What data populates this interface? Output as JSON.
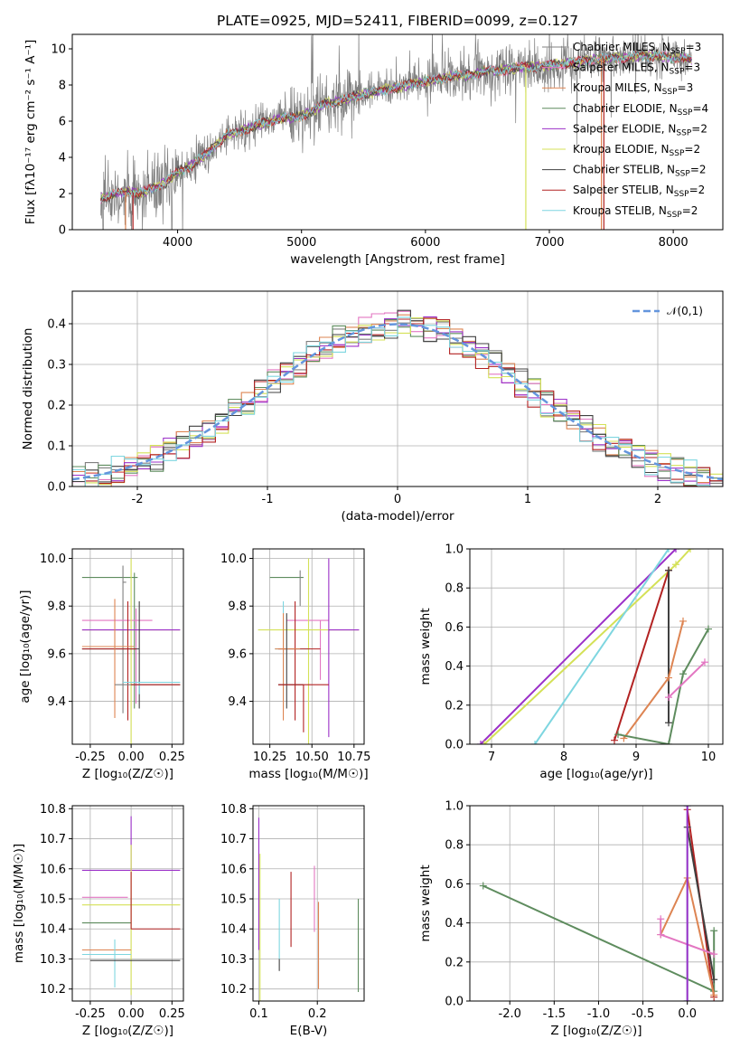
{
  "figure_title": "PLATE=0925, MJD=52411, FIBERID=0099, z=0.127",
  "models": [
    {
      "name": "Chabrier MILES",
      "nssp": "3",
      "color": "#808080"
    },
    {
      "name": "Salpeter MILES",
      "nssp": "3",
      "color": "#e377c2"
    },
    {
      "name": "Kroupa MILES",
      "nssp": "3",
      "color": "#dd8452"
    },
    {
      "name": "Chabrier ELODIE",
      "nssp": "4",
      "color": "#5e8c5e"
    },
    {
      "name": "Salpeter ELODIE",
      "nssp": "2",
      "color": "#9b30c8"
    },
    {
      "name": "Kroupa ELODIE",
      "nssp": "2",
      "color": "#d4e157"
    },
    {
      "name": "Chabrier STELIB",
      "nssp": "2",
      "color": "#404040"
    },
    {
      "name": "Salpeter STELIB",
      "nssp": "2",
      "color": "#b22222"
    },
    {
      "name": "Kroupa STELIB",
      "nssp": "2",
      "color": "#7ed6e0"
    }
  ],
  "chart_data": [
    {
      "id": "spectrum",
      "type": "line",
      "title": "PLATE=0925, MJD=52411, FIBERID=0099, z=0.127",
      "xlabel": "wavelength [Angstrom, rest frame]",
      "ylabel": "Flux [fλ10⁻¹⁷ erg cm⁻² s⁻¹ A⁻¹]",
      "xlim": [
        3150,
        8400
      ],
      "ylim": [
        0,
        10.8
      ],
      "xticks": [
        4000,
        5000,
        6000,
        7000,
        8000
      ],
      "yticks": [
        0,
        2,
        4,
        6,
        8,
        10
      ],
      "legend_position": "top-right",
      "continuum": {
        "x": [
          3380,
          3500,
          3600,
          3700,
          3800,
          3900,
          4000,
          4100,
          4200,
          4300,
          4400,
          4500,
          4600,
          4700,
          4800,
          4900,
          5000,
          5100,
          5200,
          5300,
          5400,
          5500,
          5600,
          5700,
          5800,
          5900,
          6000,
          6100,
          6200,
          6300,
          6400,
          6500,
          6600,
          6700,
          6800,
          6900,
          7000,
          7100,
          7200,
          7300,
          7400,
          7500,
          7600,
          7700,
          7800,
          7900,
          8000,
          8100,
          8150
        ],
        "y": [
          1.7,
          2.0,
          2.1,
          2.0,
          2.3,
          2.6,
          3.2,
          3.5,
          4.0,
          4.6,
          5.3,
          5.4,
          5.7,
          5.9,
          6.1,
          6.2,
          6.3,
          6.6,
          7.0,
          7.1,
          7.3,
          7.5,
          7.6,
          7.8,
          7.9,
          8.1,
          8.2,
          8.3,
          8.5,
          8.5,
          8.6,
          8.8,
          8.8,
          8.9,
          9.0,
          9.0,
          9.1,
          9.2,
          9.2,
          9.4,
          9.4,
          9.5,
          9.5,
          9.6,
          9.6,
          9.6,
          9.5,
          9.5,
          9.4
        ]
      }
    },
    {
      "id": "residuals",
      "type": "histogram",
      "xlabel": "(data-model)/error",
      "ylabel": "Normed distribution",
      "xlim": [
        -2.5,
        2.5
      ],
      "ylim": [
        0,
        0.48
      ],
      "xticks": [
        -2,
        -1,
        0,
        1,
        2
      ],
      "yticks": [
        0.0,
        0.1,
        0.2,
        0.3,
        0.4
      ],
      "reference_curve": {
        "name": "𝒩(0,1)",
        "color": "#6495dd"
      },
      "bin_width": 0.1
    },
    {
      "id": "age-vs-Z",
      "type": "errorbar",
      "xlabel": "Z [log₁₀(Z/Z☉)]",
      "ylabel": "age  [log₁₀(age/yr)]",
      "xlim": [
        -0.36,
        0.32
      ],
      "ylim": [
        9.22,
        10.04
      ],
      "xticks": [
        -0.25,
        0.0,
        0.25
      ],
      "yticks": [
        9.4,
        9.6,
        9.8,
        10.0
      ],
      "points": [
        {
          "model": 3,
          "x": 0.02,
          "y": 9.92,
          "xerr": [
            0.32,
            0.02
          ],
          "yerr": [
            0.55,
            0.02
          ]
        },
        {
          "model": 0,
          "x": -0.05,
          "y": 9.9,
          "xerr": [
            0.0,
            0.02
          ],
          "yerr": [
            0.55,
            0.07
          ]
        },
        {
          "model": 1,
          "x": 0.03,
          "y": 9.74,
          "xerr": [
            0.33,
            0.1
          ],
          "yerr": [
            0.35,
            0.05
          ]
        },
        {
          "model": 5,
          "x": 0.0,
          "y": 9.7,
          "xerr": [
            0.3,
            0.3
          ],
          "yerr": [
            0.5,
            0.3
          ]
        },
        {
          "model": 4,
          "x": 0.0,
          "y": 9.7,
          "xerr": [
            0.3,
            0.3
          ],
          "yerr": [
            0.0,
            0.0
          ]
        },
        {
          "model": 6,
          "x": 0.05,
          "y": 9.62,
          "xerr": [
            0.35,
            0.0
          ],
          "yerr": [
            0.25,
            0.2
          ]
        },
        {
          "model": 7,
          "x": -0.02,
          "y": 9.62,
          "xerr": [
            0.28,
            0.05
          ],
          "yerr": [
            0.3,
            0.2
          ]
        },
        {
          "model": 2,
          "x": -0.1,
          "y": 9.63,
          "xerr": [
            0.2,
            0.12
          ],
          "yerr": [
            0.3,
            0.2
          ]
        },
        {
          "model": 8,
          "x": 0.05,
          "y": 9.48,
          "xerr": [
            0.1,
            0.25
          ],
          "yerr": [
            0.05,
            0.0
          ]
        },
        {
          "model": 0,
          "x": -0.1,
          "y": 9.47,
          "xerr": [
            0.0,
            0.4
          ],
          "yerr": [
            0.0,
            0.0
          ]
        },
        {
          "model": 7,
          "x": 0.3,
          "y": 9.47,
          "xerr": [
            0.3,
            0.0
          ],
          "yerr": [
            0.0,
            0.0
          ]
        }
      ]
    },
    {
      "id": "age-vs-mass",
      "type": "errorbar",
      "xlabel": "mass [log₁₀(M/M☉)]",
      "xlim": [
        10.15,
        10.81
      ],
      "ylim": [
        9.22,
        10.04
      ],
      "xticks": [
        10.25,
        10.5,
        10.75
      ],
      "yticks": [
        9.4,
        9.6,
        9.8,
        10.0
      ],
      "points": [
        {
          "model": 3,
          "x": 10.45,
          "y": 9.92,
          "xerr": [
            0.2,
            0.0
          ],
          "yerr": [
            0.0,
            0.0
          ]
        },
        {
          "model": 0,
          "x": 10.43,
          "y": 9.9,
          "xerr": [
            0.0,
            0.0
          ],
          "yerr": [
            0.1,
            0.05
          ]
        },
        {
          "model": 1,
          "x": 10.55,
          "y": 9.74,
          "xerr": [
            0.2,
            0.05
          ],
          "yerr": [
            0.25,
            0.0
          ]
        },
        {
          "model": 5,
          "x": 10.48,
          "y": 9.7,
          "xerr": [
            0.3,
            0.3
          ],
          "yerr": [
            0.5,
            0.3
          ]
        },
        {
          "model": 4,
          "x": 10.6,
          "y": 9.7,
          "xerr": [
            0.0,
            0.18
          ],
          "yerr": [
            0.45,
            0.3
          ]
        },
        {
          "model": 8,
          "x": 10.33,
          "y": 9.62,
          "xerr": [
            0.05,
            0.15
          ],
          "yerr": [
            0.25,
            0.2
          ]
        },
        {
          "model": 7,
          "x": 10.4,
          "y": 9.62,
          "xerr": [
            0.1,
            0.15
          ],
          "yerr": [
            0.3,
            0.2
          ]
        },
        {
          "model": 2,
          "x": 10.33,
          "y": 9.62,
          "xerr": [
            0.05,
            0.1
          ],
          "yerr": [
            0.3,
            0.15
          ]
        },
        {
          "model": 6,
          "x": 10.35,
          "y": 9.47,
          "xerr": [
            0.05,
            0.1
          ],
          "yerr": [
            0.1,
            0.3
          ]
        },
        {
          "model": 7,
          "x": 10.45,
          "y": 9.47,
          "xerr": [
            0.15,
            0.15
          ],
          "yerr": [
            0.2,
            0.0
          ]
        }
      ]
    },
    {
      "id": "mass-weight-vs-age",
      "type": "line",
      "xlabel": "age  [log₁₀(age/yr)]",
      "ylabel": "mass weight",
      "xlim": [
        6.7,
        10.2
      ],
      "ylim": [
        0.0,
        1.0
      ],
      "xticks": [
        7,
        8,
        9,
        10
      ],
      "yticks": [
        0.0,
        0.2,
        0.4,
        0.6,
        0.8,
        1.0
      ],
      "series": [
        {
          "model": 4,
          "x": [
            6.85,
            9.55
          ],
          "y": [
            0.0,
            1.0
          ]
        },
        {
          "model": 5,
          "x": [
            6.9,
            9.55,
            9.75
          ],
          "y": [
            0.0,
            0.92,
            1.0
          ]
        },
        {
          "model": 8,
          "x": [
            7.6,
            9.45
          ],
          "y": [
            0.0,
            1.0
          ]
        },
        {
          "model": 7,
          "x": [
            8.7,
            9.45,
            9.45
          ],
          "y": [
            0.02,
            0.89,
            0.89
          ]
        },
        {
          "model": 6,
          "x": [
            9.45,
            9.45
          ],
          "y": [
            0.11,
            0.89
          ]
        },
        {
          "model": 2,
          "x": [
            8.83,
            9.45,
            9.65
          ],
          "y": [
            0.03,
            0.34,
            0.63
          ]
        },
        {
          "model": 3,
          "x": [
            8.75,
            9.45,
            9.65,
            10.0
          ],
          "y": [
            0.05,
            0.0,
            0.36,
            0.59
          ]
        },
        {
          "model": 1,
          "x": [
            9.45,
            9.95
          ],
          "y": [
            0.24,
            0.42
          ]
        }
      ]
    },
    {
      "id": "mass-vs-Z",
      "type": "errorbar",
      "xlabel": "Z [log₁₀(Z/Z☉)]",
      "ylabel": "mass [log₁₀(M/M☉)]",
      "xlim": [
        -0.36,
        0.32
      ],
      "ylim": [
        10.16,
        10.81
      ],
      "xticks": [
        -0.25,
        0.0,
        0.25
      ],
      "yticks": [
        10.2,
        10.3,
        10.4,
        10.5,
        10.6,
        10.7,
        10.8
      ],
      "points": [
        {
          "model": 4,
          "x": 0.0,
          "y": 10.595,
          "xerr": [
            0.3,
            0.3
          ],
          "yerr": [
            0.0,
            0.18
          ]
        },
        {
          "model": 1,
          "x": -0.02,
          "y": 10.505,
          "xerr": [
            0.28,
            0.0
          ],
          "yerr": [
            0.0,
            0.0
          ]
        },
        {
          "model": 5,
          "x": 0.0,
          "y": 10.48,
          "xerr": [
            0.3,
            0.3
          ],
          "yerr": [
            0.3,
            0.2
          ]
        },
        {
          "model": 3,
          "x": -0.05,
          "y": 10.42,
          "xerr": [
            0.25,
            0.05
          ],
          "yerr": [
            0.0,
            0.0
          ]
        },
        {
          "model": 7,
          "x": 0.0,
          "y": 10.4,
          "xerr": [
            0.0,
            0.3
          ],
          "yerr": [
            0.0,
            0.19
          ]
        },
        {
          "model": 2,
          "x": -0.1,
          "y": 10.33,
          "xerr": [
            0.2,
            0.1
          ],
          "yerr": [
            0.0,
            0.0
          ]
        },
        {
          "model": 8,
          "x": -0.1,
          "y": 10.315,
          "xerr": [
            0.2,
            0.1
          ],
          "yerr": [
            0.11,
            0.05
          ]
        },
        {
          "model": 6,
          "x": 0.05,
          "y": 10.295,
          "xerr": [
            0.3,
            0.25
          ],
          "yerr": [
            0.0,
            0.0
          ]
        },
        {
          "model": 0,
          "x": 0.05,
          "y": 10.3,
          "xerr": [
            0.0,
            0.0
          ],
          "yerr": [
            0.0,
            0.0
          ]
        }
      ]
    },
    {
      "id": "mass-vs-ebv",
      "type": "errorbar",
      "xlabel": "E(B-V)",
      "xlim": [
        0.09,
        0.28
      ],
      "ylim": [
        10.16,
        10.81
      ],
      "xticks": [
        0.1,
        0.2
      ],
      "yticks": [
        10.2,
        10.3,
        10.4,
        10.5,
        10.6,
        10.7,
        10.8
      ],
      "segments": [
        {
          "model": 4,
          "x": 0.1,
          "y": [
            10.33,
            10.77
          ]
        },
        {
          "model": 5,
          "x": 0.102,
          "y": [
            10.16,
            10.65
          ]
        },
        {
          "model": 8,
          "x": 0.135,
          "y": [
            10.3,
            10.5
          ]
        },
        {
          "model": 6,
          "x": 0.135,
          "y": [
            10.26,
            10.3
          ]
        },
        {
          "model": 7,
          "x": 0.155,
          "y": [
            10.34,
            10.59
          ]
        },
        {
          "model": 1,
          "x": 0.195,
          "y": [
            10.39,
            10.61
          ]
        },
        {
          "model": 2,
          "x": 0.202,
          "y": [
            10.2,
            10.49
          ]
        },
        {
          "model": 3,
          "x": 0.27,
          "y": [
            10.19,
            10.5
          ]
        }
      ]
    },
    {
      "id": "mass-weight-vs-Z",
      "type": "line",
      "xlabel": "Z [log₁₀(Z/Z☉)]",
      "ylabel": "mass weight",
      "xlim": [
        -2.45,
        0.4
      ],
      "ylim": [
        0.0,
        1.0
      ],
      "xticks": [
        -2.0,
        -1.5,
        -1.0,
        -0.5,
        0.0
      ],
      "yticks": [
        0.0,
        0.2,
        0.4,
        0.6,
        0.8,
        1.0
      ],
      "series": [
        {
          "model": 3,
          "x": [
            -2.3,
            0.3,
            0.3
          ],
          "y": [
            0.59,
            0.05,
            0.36
          ]
        },
        {
          "model": 8,
          "x": [
            0.0,
            0.0
          ],
          "y": [
            0.0,
            1.0
          ]
        },
        {
          "model": 7,
          "x": [
            0.0,
            0.3
          ],
          "y": [
            0.98,
            0.02
          ]
        },
        {
          "model": 6,
          "x": [
            0.0,
            0.3
          ],
          "y": [
            0.89,
            0.11
          ]
        },
        {
          "model": 2,
          "x": [
            -0.3,
            0.0,
            0.3
          ],
          "y": [
            0.34,
            0.63,
            0.03
          ]
        },
        {
          "model": 1,
          "x": [
            -0.3,
            -0.3,
            0.3
          ],
          "y": [
            0.42,
            0.34,
            0.24
          ]
        },
        {
          "model": 4,
          "x": [
            0.0,
            0.0
          ],
          "y": [
            0.0,
            1.0
          ]
        }
      ]
    }
  ]
}
